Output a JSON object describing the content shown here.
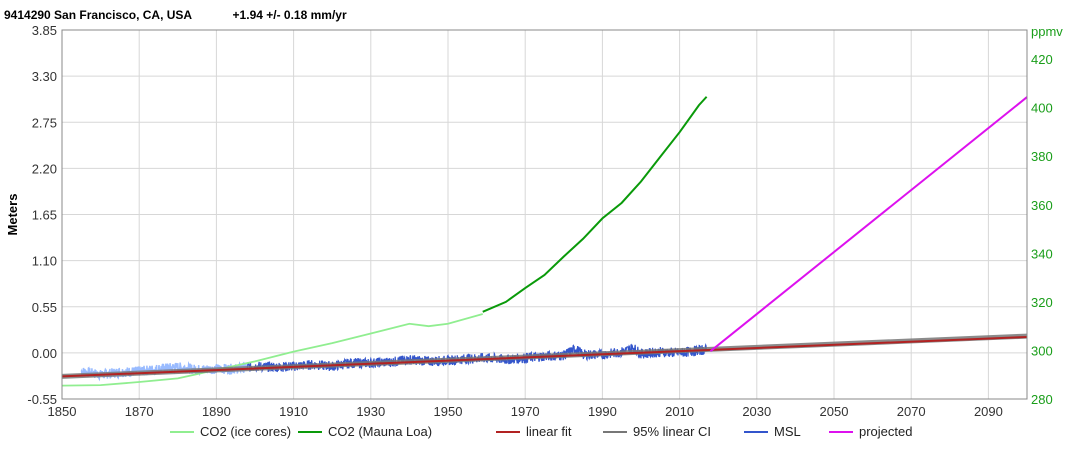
{
  "station": {
    "label": "9414290 San Francisco, CA, USA",
    "trend": "+1.94 +/- 0.18 mm/yr"
  },
  "chart_data": {
    "type": "line",
    "xlim": [
      1850,
      2100
    ],
    "x_ticks": [
      "1850",
      "1870",
      "1890",
      "1910",
      "1930",
      "1950",
      "1970",
      "1990",
      "2010",
      "2030",
      "2050",
      "2070",
      "2090"
    ],
    "ylabel": "Meters",
    "ylim": [
      -0.55,
      3.85
    ],
    "y_ticks": [
      "3.85",
      "3.30",
      "2.75",
      "2.20",
      "1.65",
      "1.10",
      "0.55",
      "0.00",
      "-0.55"
    ],
    "y2label": "ppmv",
    "y2lim": [
      280,
      432
    ],
    "y2_ticks": [
      "420",
      "400",
      "380",
      "360",
      "340",
      "320",
      "300",
      "280"
    ],
    "grid": true,
    "legend_position": "bottom",
    "series": [
      {
        "name": "CO2 (ice cores)",
        "axis": "right",
        "color": "#90ee90",
        "x": [
          1850,
          1860,
          1870,
          1880,
          1890,
          1900,
          1910,
          1920,
          1930,
          1940,
          1945,
          1950,
          1959
        ],
        "y": [
          285.5,
          285.7,
          287,
          288.5,
          292,
          295.5,
          299.5,
          303,
          307,
          311,
          310,
          311,
          315
        ]
      },
      {
        "name": "CO2 (Mauna Loa)",
        "axis": "right",
        "color": "#0a9a0a",
        "x": [
          1959,
          1965,
          1970,
          1975,
          1980,
          1985,
          1990,
          1995,
          2000,
          2005,
          2010,
          2015,
          2017
        ],
        "y": [
          315.9,
          320,
          325.7,
          331.1,
          338.7,
          346,
          354.4,
          360.8,
          369.6,
          379.8,
          389.9,
          401,
          404.5
        ]
      },
      {
        "name": "linear fit",
        "axis": "left",
        "color": "#b22222",
        "x": [
          1850,
          2100
        ],
        "y": [
          -0.28,
          0.19
        ]
      },
      {
        "name": "95% linear CI",
        "axis": "left",
        "color": "#777777",
        "x": [
          1850,
          2100
        ],
        "y_low": [
          -0.31,
          0.17
        ],
        "y_high": [
          -0.25,
          0.23
        ]
      },
      {
        "name": "MSL",
        "axis": "left",
        "color": "#3355cc",
        "color_early": "#99bbff",
        "x": [
          1855,
          1860,
          1865,
          1870,
          1875,
          1880,
          1885,
          1890,
          1895,
          1900,
          1905,
          1910,
          1915,
          1920,
          1925,
          1930,
          1935,
          1940,
          1945,
          1950,
          1955,
          1960,
          1965,
          1970,
          1975,
          1980,
          1983,
          1985,
          1990,
          1995,
          1998,
          2000,
          2005,
          2010,
          2015,
          2017
        ],
        "y": [
          -0.22,
          -0.26,
          -0.23,
          -0.22,
          -0.19,
          -0.17,
          -0.2,
          -0.19,
          -0.19,
          -0.16,
          -0.17,
          -0.16,
          -0.14,
          -0.16,
          -0.12,
          -0.12,
          -0.11,
          -0.08,
          -0.1,
          -0.09,
          -0.07,
          -0.06,
          -0.08,
          -0.06,
          -0.04,
          -0.03,
          0.05,
          -0.02,
          -0.02,
          0.01,
          0.06,
          -0.01,
          0.01,
          0.0,
          0.03,
          0.04
        ]
      },
      {
        "name": "projected",
        "axis": "left",
        "color": "#dd11ee",
        "x": [
          2018,
          2100
        ],
        "y": [
          0.02,
          3.05
        ]
      }
    ]
  }
}
